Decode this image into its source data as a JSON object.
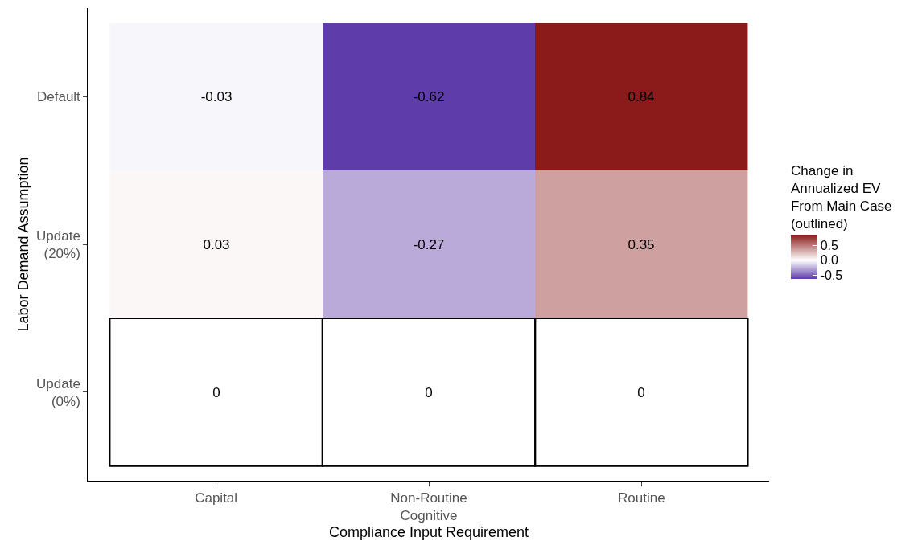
{
  "chart_data": {
    "type": "heatmap",
    "xlabel": "Compliance Input Requirement",
    "ylabel": "Labor Demand Assumption",
    "clabel": "Change in\nAnnualized EV\nFrom Main Case\n(outlined)",
    "categories": [
      "Capital",
      "Non-Routine\nCognitive",
      "Routine"
    ],
    "y_categories": [
      "Default",
      "Update\n(20%)",
      "Update\n(0%)"
    ],
    "cells": [
      [
        -0.03,
        -0.62,
        0.84
      ],
      [
        0.03,
        -0.27,
        0.35
      ],
      [
        0,
        0,
        0
      ]
    ],
    "data_labels": true,
    "colors": [
      "#5e3ca9",
      "#ffffff",
      "#8b1a1a"
    ],
    "clim": [
      -0.62,
      0.84
    ],
    "cticks": [
      {
        "value": -0.5,
        "label": "-0.5"
      },
      {
        "value": 0,
        "label": "0.0"
      },
      {
        "value": 0.5,
        "label": "0.5"
      }
    ],
    "grid": false
  }
}
